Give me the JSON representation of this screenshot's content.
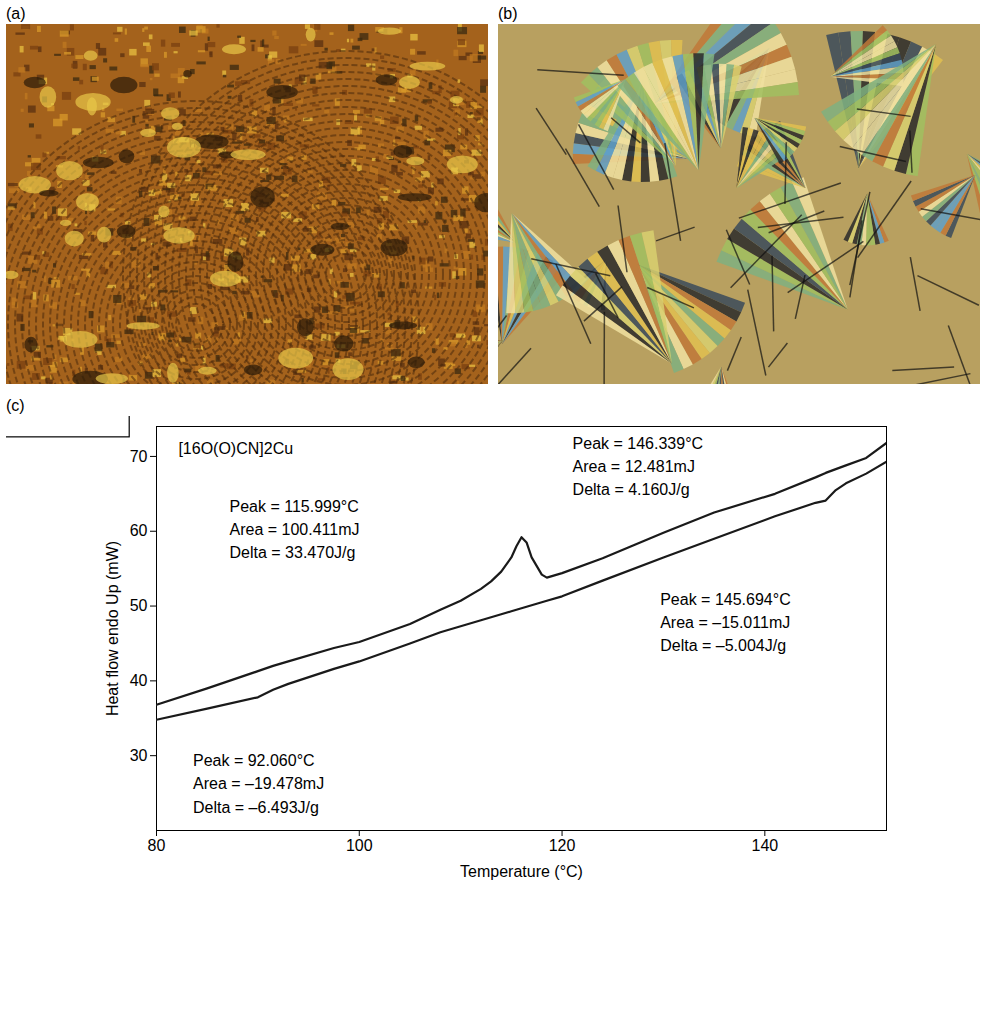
{
  "panel_labels": [
    "(a)",
    "(b)",
    "(c)"
  ],
  "chart_data": {
    "type": "line",
    "title": "[16O(O)CN]2Cu",
    "x_label": "Temperature (°C)",
    "y_label": "Heat flow endo Up (mW)",
    "x": [
      80,
      85,
      90,
      91.5,
      93,
      97.5,
      100,
      105,
      108,
      110,
      112,
      113,
      114,
      115,
      115.5,
      116,
      116.5,
      117,
      118,
      118.5,
      120,
      124,
      130,
      135,
      141,
      145,
      146,
      147,
      148,
      150,
      152
    ],
    "series": [
      {
        "color": "#1a1a1a",
        "values": [
          36.8,
          39,
          41.3,
          42,
          42.6,
          44.4,
          45.2,
          47.6,
          49.5,
          50.7,
          52.3,
          53.3,
          54.6,
          56.5,
          58,
          59.2,
          58.5,
          56.5,
          54.2,
          53.8,
          54.4,
          56.4,
          59.8,
          62.5,
          65,
          67.2,
          67.8,
          68.3,
          68.8,
          69.8,
          71.8
        ]
      },
      {
        "color": "#1a1a1a",
        "values": [
          34.8,
          36.3,
          37.8,
          38.8,
          39.6,
          41.6,
          42.6,
          45,
          46.5,
          47.3,
          48.1,
          48.5,
          48.9,
          49.3,
          49.5,
          49.7,
          49.9,
          50.1,
          50.5,
          50.7,
          51.3,
          53.4,
          56.5,
          59,
          62,
          63.8,
          64.1,
          65.5,
          66.4,
          67.7,
          69.3
        ]
      }
    ],
    "xlim": [
      80,
      152
    ],
    "xticks": [
      80,
      100,
      120,
      140
    ],
    "ylim": [
      20,
      74
    ],
    "yticks": [
      30,
      40,
      50,
      60,
      70
    ],
    "grid": false,
    "annotations": [
      "Peak = 146.339°C\nArea = 12.481mJ\nDelta = 4.160J/g",
      "Peak = 115.999°C\nArea = 100.411mJ\nDelta = 33.470J/g",
      "Peak = 145.694°C\nArea = –15.011mJ\nDelta = –5.004J/g",
      "Peak = 92.060°C\nArea = –19.478mJ\nDelta = –6.493J/g"
    ]
  }
}
